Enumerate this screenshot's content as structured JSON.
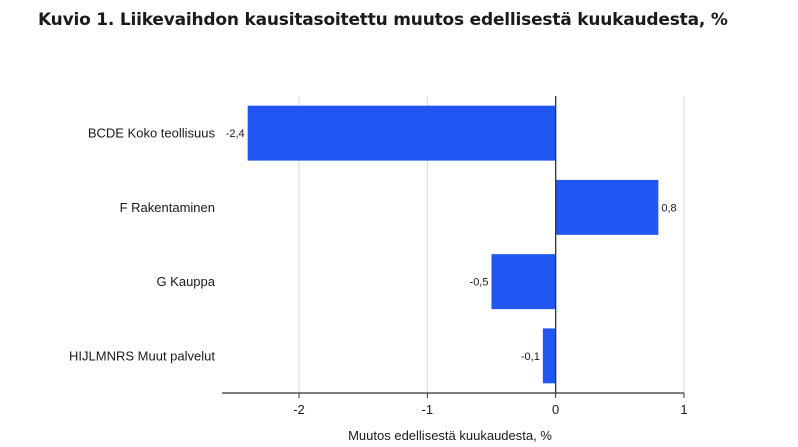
{
  "chart_data": {
    "type": "bar",
    "orientation": "horizontal",
    "title": "Kuvio 1. Liikevaihdon kausitasoitettu muutos edellisestä kuukaudesta, %",
    "xlabel": "Muutos edellisestä kuukaudesta, %",
    "ylabel": "",
    "categories": [
      "BCDE Koko teollisuus",
      "F Rakentaminen",
      "G Kauppa",
      "HIJLMNRS Muut palvelut"
    ],
    "values": [
      -2.4,
      0.8,
      -0.5,
      -0.1
    ],
    "data_labels": [
      "-2,4",
      "0,8",
      "-0,5",
      "-0,1"
    ],
    "xlim": [
      -2.6,
      1.0
    ],
    "xticks": [
      -2,
      -1,
      0,
      1
    ],
    "xtick_labels": [
      "-2",
      "-1",
      "0",
      "1"
    ],
    "grid": true,
    "bar_color": "#2156f2"
  }
}
